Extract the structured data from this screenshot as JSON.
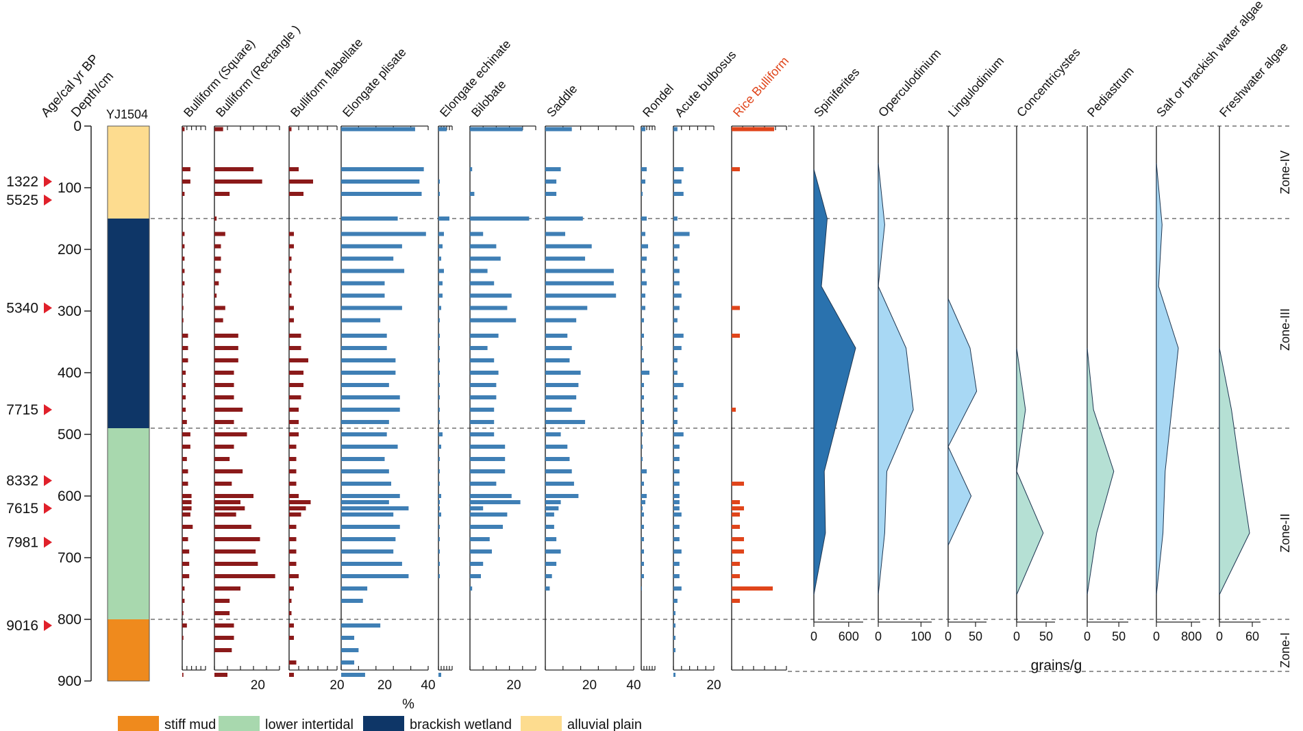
{
  "chart_data": {
    "type": "stratigraphic-diagram",
    "core_label": "YJ1504",
    "axis": {
      "age_label": "Age/cal  yr BP",
      "depth_label": "Depth/cm",
      "depth_range": [
        0,
        900
      ],
      "depth_ticks": [
        "0",
        "100",
        "200",
        "300",
        "400",
        "500",
        "600",
        "700",
        "800",
        "900"
      ]
    },
    "ages": [
      {
        "label": "1322",
        "depth": 90
      },
      {
        "label": "5525",
        "depth": 120
      },
      {
        "label": "5340",
        "depth": 295
      },
      {
        "label": "7715",
        "depth": 460
      },
      {
        "label": "8332",
        "depth": 575
      },
      {
        "label": "7615",
        "depth": 620
      },
      {
        "label": "7981",
        "depth": 675
      },
      {
        "label": "9016",
        "depth": 810
      }
    ],
    "lithology": [
      {
        "top": 0,
        "bottom": 150,
        "unit": "alluvial plain",
        "color": "#FDDC8F"
      },
      {
        "top": 150,
        "bottom": 490,
        "unit": "brackish wetland",
        "color": "#0E3667"
      },
      {
        "top": 490,
        "bottom": 800,
        "unit": "lower intertidal",
        "color": "#A8D8AE"
      },
      {
        "top": 800,
        "bottom": 900,
        "unit": "stiff mud",
        "color": "#EF8A1D"
      }
    ],
    "legend": [
      {
        "label": "stiff mud",
        "color": "#EF8A1D"
      },
      {
        "label": "lower intertidal",
        "color": "#A8D8AE"
      },
      {
        "label": "brackish wetland",
        "color": "#0E3667"
      },
      {
        "label": "alluvial plain",
        "color": "#FDDC8F"
      }
    ],
    "zone_boundaries": [
      150,
      490,
      800
    ],
    "zones": [
      {
        "label": "Zone-IV",
        "mid": 75
      },
      {
        "label": "Zone-III",
        "mid": 330
      },
      {
        "label": "Zone-II",
        "mid": 660
      },
      {
        "label": "Zone-I",
        "mid": 850
      }
    ],
    "depths": [
      5,
      70,
      90,
      110,
      150,
      175,
      195,
      215,
      235,
      255,
      275,
      295,
      315,
      340,
      360,
      380,
      400,
      420,
      440,
      460,
      480,
      500,
      520,
      540,
      560,
      580,
      600,
      610,
      620,
      630,
      650,
      670,
      690,
      710,
      730,
      750,
      770,
      790,
      810,
      830,
      850,
      870,
      890
    ],
    "phytolith_unit": "%",
    "phytolith": [
      {
        "name": "Bulliform (Square)",
        "max": 10,
        "ticks": [],
        "color": "#8B1A1A",
        "values": [
          1,
          3.5,
          3.5,
          1,
          0,
          1,
          1,
          1,
          1,
          1,
          0.5,
          0.5,
          0.5,
          2.5,
          2.5,
          2.5,
          1.5,
          1.5,
          1.5,
          1.5,
          2,
          3.5,
          3.5,
          2,
          2.5,
          2.5,
          4,
          4,
          4,
          3.5,
          4.5,
          2.5,
          3,
          3,
          3,
          1,
          1,
          0.5,
          2,
          0.5,
          0,
          0,
          0.5
        ]
      },
      {
        "name": "Bulliform (Rectangle )",
        "max": 30,
        "ticks": [
          "20"
        ],
        "color": "#8B1A1A",
        "values": [
          4,
          18,
          22,
          7,
          1,
          5,
          3,
          3,
          3,
          2,
          1,
          5,
          4,
          11,
          11,
          11,
          9,
          9,
          9,
          13,
          9,
          15,
          9,
          7,
          13,
          8,
          18,
          12,
          14,
          10,
          17,
          21,
          19,
          20,
          28,
          12,
          7,
          7,
          9,
          9,
          8,
          0,
          6
        ]
      },
      {
        "name": "Bulliform flabellate",
        "max": 20,
        "ticks": [
          "20"
        ],
        "color": "#8B1A1A",
        "values": [
          1,
          4,
          10,
          6,
          0,
          2,
          2,
          1,
          1,
          1,
          1,
          2,
          2,
          5,
          5,
          8,
          6,
          6,
          5,
          4,
          4,
          4,
          3,
          3,
          3,
          3,
          4,
          9,
          7,
          5,
          3,
          3,
          3,
          3,
          4,
          2,
          1,
          1,
          2,
          2,
          0,
          3,
          2
        ]
      },
      {
        "name": "Elongate plisate",
        "max": 40,
        "ticks": [
          "20",
          "40"
        ],
        "color": "#3F7FB5",
        "values": [
          34,
          38,
          36,
          37,
          26,
          39,
          28,
          24,
          29,
          20,
          20,
          28,
          18,
          21,
          21,
          25,
          25,
          22,
          27,
          27,
          22,
          21,
          26,
          20,
          22,
          23,
          27,
          22,
          31,
          24,
          27,
          25,
          24,
          28,
          31,
          12,
          10,
          0,
          18,
          6,
          8,
          6,
          11
        ]
      },
      {
        "name": "Elongate echinate",
        "max": 10,
        "ticks": [],
        "color": "#3F7FB5",
        "values": [
          6,
          0,
          1,
          1,
          8,
          4,
          3,
          2,
          4,
          3,
          3,
          2,
          1,
          1,
          1,
          1,
          1,
          1,
          1,
          1,
          1,
          3,
          2,
          1,
          1,
          1,
          2,
          1,
          1,
          2,
          1,
          1,
          1,
          1,
          1,
          0,
          0,
          0,
          0,
          0,
          0,
          0,
          2
        ]
      },
      {
        "name": "Bilobate",
        "max": 30,
        "ticks": [
          "20"
        ],
        "color": "#3F7FB5",
        "values": [
          24,
          1,
          0,
          2,
          27,
          6,
          12,
          14,
          8,
          11,
          19,
          17,
          21,
          13,
          8,
          11,
          13,
          12,
          12,
          11,
          11,
          11,
          16,
          16,
          16,
          12,
          19,
          23,
          6,
          17,
          15,
          9,
          10,
          6,
          5,
          1,
          0,
          0,
          0,
          0,
          0,
          0,
          0
        ]
      },
      {
        "name": "Saddle",
        "max": 40,
        "ticks": [
          "20",
          "40"
        ],
        "color": "#3F7FB5",
        "values": [
          12,
          7,
          5,
          5,
          17,
          9,
          21,
          18,
          31,
          31,
          32,
          19,
          14,
          10,
          12,
          11,
          16,
          15,
          14,
          12,
          18,
          7,
          10,
          11,
          12,
          13,
          15,
          7,
          6,
          4,
          4,
          5,
          7,
          5,
          3,
          2,
          0,
          0,
          0,
          0,
          0,
          0,
          0
        ]
      },
      {
        "name": "Rondel",
        "max": 10,
        "ticks": [],
        "color": "#3F7FB5",
        "values": [
          3,
          4,
          3,
          1,
          4,
          3,
          5,
          4,
          3,
          4,
          3,
          3,
          2,
          2,
          1,
          2,
          6,
          2,
          2,
          2,
          2,
          1,
          1,
          1,
          4,
          2,
          4,
          3,
          1,
          2,
          2,
          2,
          2,
          2,
          2,
          0.5,
          0,
          0,
          0,
          0,
          0,
          0,
          0
        ]
      },
      {
        "name": "Acute bulbosus",
        "max": 20,
        "ticks": [
          "20"
        ],
        "color": "#3F7FB5",
        "values": [
          2,
          5,
          4,
          5,
          2,
          8,
          3,
          2,
          3,
          3,
          4,
          3,
          2,
          5,
          4,
          2,
          2,
          5,
          2,
          2,
          2,
          5,
          3,
          3,
          3,
          3,
          3,
          3,
          3,
          4,
          3,
          3,
          4,
          3,
          3,
          4,
          2,
          1,
          1,
          1,
          1,
          0,
          1
        ]
      },
      {
        "name": "Rice Bulliform",
        "max": 4,
        "ticks": [],
        "color": "#E0451B",
        "label_color": "#E0451B",
        "values": [
          3.1,
          0.6,
          0,
          0,
          0,
          0,
          0,
          0,
          0,
          0,
          0,
          0.6,
          0,
          0.6,
          0,
          0,
          0,
          0,
          0,
          0.3,
          0,
          0,
          0,
          0,
          0,
          0.9,
          0,
          0.6,
          0.9,
          0.6,
          0.6,
          0.9,
          0.9,
          0.6,
          0.6,
          3,
          0.6,
          0,
          0,
          0,
          0,
          0,
          0
        ]
      }
    ],
    "palynomorph_unit": "grains/g",
    "palynomorphs": [
      {
        "name": "Spiniferites",
        "max": 850,
        "ticks": [
          "0",
          "600"
        ],
        "color": "#2A72AE",
        "points": [
          [
            70,
            0
          ],
          [
            150,
            230
          ],
          [
            260,
            130
          ],
          [
            360,
            720
          ],
          [
            560,
            180
          ],
          [
            660,
            200
          ],
          [
            760,
            0
          ]
        ]
      },
      {
        "name": "Operculodinium",
        "max": 125,
        "ticks": [
          "0",
          "100"
        ],
        "color": "#A8D8F4",
        "points": [
          [
            60,
            0
          ],
          [
            160,
            15
          ],
          [
            260,
            0
          ],
          [
            360,
            65
          ],
          [
            460,
            82
          ],
          [
            560,
            20
          ],
          [
            660,
            15
          ],
          [
            760,
            0
          ]
        ]
      },
      {
        "name": "Lingulodinium",
        "max": 70,
        "ticks": [
          "0",
          "50"
        ],
        "color": "#A8D8F4",
        "points": [
          [
            280,
            0
          ],
          [
            360,
            40
          ],
          [
            430,
            52
          ],
          [
            520,
            0
          ],
          [
            600,
            42
          ],
          [
            680,
            0
          ]
        ]
      },
      {
        "name": "Concentricystes",
        "max": 65,
        "ticks": [
          "0",
          "50"
        ],
        "color": "#B5E0D4",
        "points": [
          [
            360,
            0
          ],
          [
            460,
            15
          ],
          [
            560,
            0
          ],
          [
            660,
            45
          ],
          [
            760,
            0
          ]
        ]
      },
      {
        "name": "Pediastrum",
        "max": 65,
        "ticks": [
          "0",
          "50"
        ],
        "color": "#B5E0D4",
        "points": [
          [
            360,
            0
          ],
          [
            460,
            10
          ],
          [
            560,
            42
          ],
          [
            660,
            15
          ],
          [
            760,
            0
          ]
        ]
      },
      {
        "name": "Salt or brackish water algae",
        "max": 1000,
        "ticks": [
          "0",
          "800"
        ],
        "color": "#A8D8F4",
        "points": [
          [
            60,
            0
          ],
          [
            160,
            130
          ],
          [
            260,
            50
          ],
          [
            360,
            500
          ],
          [
            460,
            350
          ],
          [
            560,
            200
          ],
          [
            660,
            150
          ],
          [
            760,
            0
          ]
        ]
      },
      {
        "name": "Freshwater algae",
        "max": 75,
        "ticks": [
          "0",
          "60"
        ],
        "color": "#B5E0D4",
        "points": [
          [
            360,
            0
          ],
          [
            460,
            22
          ],
          [
            560,
            38
          ],
          [
            660,
            55
          ],
          [
            760,
            0
          ]
        ]
      }
    ]
  }
}
